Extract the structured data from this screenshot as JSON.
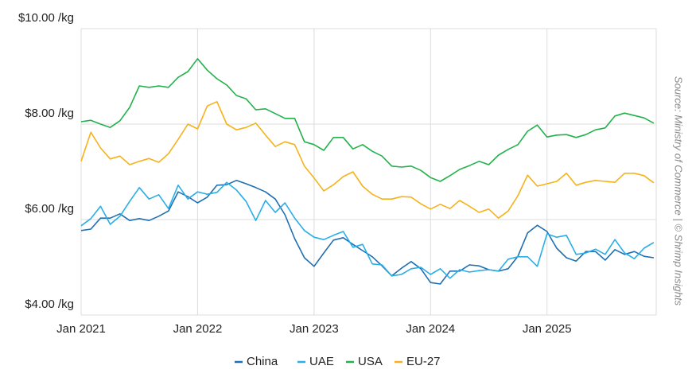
{
  "chart_data": {
    "type": "line",
    "source": "Source: Ministry of Commerce | © Shrimp Insights",
    "x": [
      "2021-01",
      "2021-02",
      "2021-03",
      "2021-04",
      "2021-05",
      "2021-06",
      "2021-07",
      "2021-08",
      "2021-09",
      "2021-10",
      "2021-11",
      "2021-12",
      "2022-01",
      "2022-02",
      "2022-03",
      "2022-04",
      "2022-05",
      "2022-06",
      "2022-07",
      "2022-08",
      "2022-09",
      "2022-10",
      "2022-11",
      "2022-12",
      "2023-01",
      "2023-02",
      "2023-03",
      "2023-04",
      "2023-05",
      "2023-06",
      "2023-07",
      "2023-08",
      "2023-09",
      "2023-10",
      "2023-11",
      "2023-12",
      "2024-01",
      "2024-02",
      "2024-03",
      "2024-04",
      "2024-05",
      "2024-06",
      "2024-07",
      "2024-08",
      "2024-09",
      "2024-10",
      "2024-11",
      "2024-12",
      "2025-01",
      "2025-02",
      "2025-03",
      "2025-04",
      "2025-05",
      "2025-06",
      "2025-07",
      "2025-08",
      "2025-09",
      "2025-10",
      "2025-11",
      "2025-12"
    ],
    "series": [
      {
        "name": "China",
        "color": "#1f6fb2",
        "values": [
          5.77,
          5.8,
          6.03,
          6.03,
          6.12,
          5.98,
          6.02,
          5.98,
          6.07,
          6.18,
          6.58,
          6.48,
          6.35,
          6.47,
          6.72,
          6.73,
          6.82,
          6.75,
          6.67,
          6.58,
          6.43,
          6.1,
          5.6,
          5.2,
          5.02,
          5.3,
          5.57,
          5.62,
          5.48,
          5.35,
          5.22,
          5.03,
          4.82,
          4.98,
          5.12,
          4.97,
          4.68,
          4.65,
          4.92,
          4.92,
          5.05,
          5.03,
          4.95,
          4.92,
          4.97,
          5.23,
          5.72,
          5.88,
          5.75,
          5.4,
          5.2,
          5.13,
          5.33,
          5.33,
          5.15,
          5.37,
          5.27,
          5.33,
          5.23,
          5.2
        ]
      },
      {
        "name": "UAE",
        "color": "#29aee6",
        "values": [
          5.87,
          6.02,
          6.28,
          5.9,
          6.07,
          6.38,
          6.67,
          6.43,
          6.52,
          6.23,
          6.72,
          6.43,
          6.58,
          6.53,
          6.57,
          6.78,
          6.62,
          6.38,
          5.98,
          6.4,
          6.15,
          6.35,
          6.03,
          5.77,
          5.63,
          5.58,
          5.67,
          5.75,
          5.42,
          5.48,
          5.07,
          5.05,
          4.82,
          4.85,
          4.97,
          5.0,
          4.85,
          4.97,
          4.77,
          4.95,
          4.9,
          4.93,
          4.95,
          4.92,
          5.17,
          5.22,
          5.22,
          5.02,
          5.7,
          5.63,
          5.67,
          5.27,
          5.3,
          5.38,
          5.27,
          5.58,
          5.3,
          5.18,
          5.4,
          5.52
        ]
      },
      {
        "name": "USA",
        "color": "#22b24c",
        "values": [
          8.05,
          8.08,
          8.0,
          7.93,
          8.07,
          8.35,
          8.8,
          8.77,
          8.8,
          8.77,
          8.98,
          9.1,
          9.37,
          9.13,
          8.95,
          8.82,
          8.6,
          8.53,
          8.3,
          8.32,
          8.22,
          8.12,
          8.12,
          7.63,
          7.57,
          7.45,
          7.72,
          7.72,
          7.48,
          7.57,
          7.43,
          7.33,
          7.12,
          7.1,
          7.12,
          7.03,
          6.88,
          6.8,
          6.92,
          7.05,
          7.13,
          7.22,
          7.15,
          7.35,
          7.47,
          7.57,
          7.85,
          7.98,
          7.73,
          7.77,
          7.78,
          7.72,
          7.78,
          7.88,
          7.92,
          8.17,
          8.23,
          8.18,
          8.13,
          8.02
        ]
      },
      {
        "name": "EU-27",
        "color": "#f5b21b",
        "values": [
          7.22,
          7.83,
          7.5,
          7.27,
          7.33,
          7.15,
          7.22,
          7.28,
          7.2,
          7.38,
          7.68,
          8.0,
          7.9,
          8.38,
          8.47,
          8.0,
          7.88,
          7.93,
          8.02,
          7.77,
          7.53,
          7.63,
          7.57,
          7.12,
          6.87,
          6.6,
          6.73,
          6.9,
          7.0,
          6.7,
          6.53,
          6.43,
          6.43,
          6.48,
          6.47,
          6.33,
          6.22,
          6.32,
          6.23,
          6.4,
          6.28,
          6.15,
          6.22,
          6.03,
          6.18,
          6.5,
          6.93,
          6.7,
          6.75,
          6.8,
          6.97,
          6.72,
          6.78,
          6.82,
          6.8,
          6.78,
          6.97,
          6.97,
          6.92,
          6.77
        ]
      }
    ],
    "xticks": [
      {
        "value": "2021-01",
        "label": "Jan 2021"
      },
      {
        "value": "2022-01",
        "label": "Jan 2022"
      },
      {
        "value": "2023-01",
        "label": "Jan 2023"
      },
      {
        "value": "2024-01",
        "label": "Jan 2024"
      },
      {
        "value": "2025-01",
        "label": "Jan 2025"
      }
    ],
    "ylim": [
      4,
      10
    ],
    "yticks": [
      {
        "value": 4,
        "label": "$4.00 /kg"
      },
      {
        "value": 6,
        "label": "$6.00 /kg"
      },
      {
        "value": 8,
        "label": "$8.00 /kg"
      },
      {
        "value": 10,
        "label": "$10.00 /kg"
      }
    ],
    "grid": true,
    "legend": "bottom"
  }
}
